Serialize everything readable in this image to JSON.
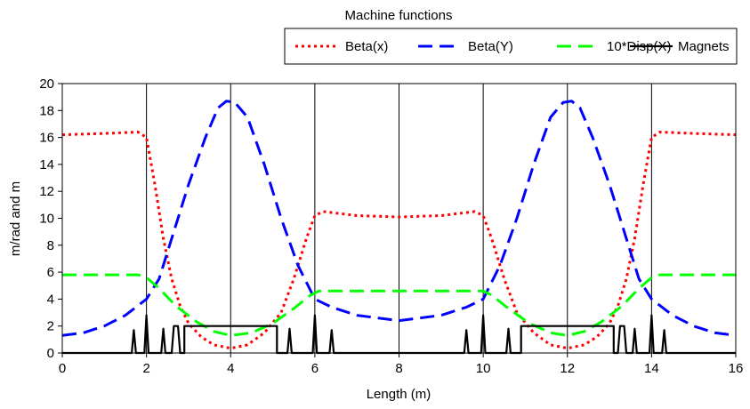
{
  "chart_data": {
    "type": "line",
    "title": "Machine functions",
    "xlabel": "Length (m)",
    "ylabel": "m/rad and m",
    "xlim": [
      0,
      16
    ],
    "ylim": [
      0,
      20
    ],
    "xticks": [
      0,
      2,
      4,
      6,
      8,
      10,
      12,
      14,
      16
    ],
    "yticks": [
      0,
      2,
      4,
      6,
      8,
      10,
      12,
      14,
      16,
      18,
      20
    ],
    "grid": "vertical",
    "legend_position": "top",
    "series": [
      {
        "name": "Beta(x)",
        "color": "#ff0000",
        "dash": "dotted",
        "points": [
          [
            0,
            16.2
          ],
          [
            1,
            16.3
          ],
          [
            1.8,
            16.4
          ],
          [
            2.0,
            16.0
          ],
          [
            2.2,
            12.5
          ],
          [
            2.4,
            8.5
          ],
          [
            2.6,
            5.5
          ],
          [
            2.8,
            3.5
          ],
          [
            3.0,
            2.2
          ],
          [
            3.3,
            1.2
          ],
          [
            3.6,
            0.6
          ],
          [
            4.0,
            0.35
          ],
          [
            4.4,
            0.6
          ],
          [
            4.8,
            1.5
          ],
          [
            5.2,
            3.0
          ],
          [
            5.5,
            5.5
          ],
          [
            5.8,
            8.5
          ],
          [
            6.0,
            10.2
          ],
          [
            6.2,
            10.5
          ],
          [
            7,
            10.2
          ],
          [
            8,
            10.1
          ],
          [
            9,
            10.2
          ],
          [
            9.8,
            10.5
          ],
          [
            10.0,
            10.2
          ],
          [
            10.2,
            8.5
          ],
          [
            10.5,
            5.5
          ],
          [
            10.8,
            3.0
          ],
          [
            11.2,
            1.5
          ],
          [
            11.6,
            0.6
          ],
          [
            12.0,
            0.35
          ],
          [
            12.4,
            0.6
          ],
          [
            12.7,
            1.2
          ],
          [
            13.0,
            2.2
          ],
          [
            13.2,
            3.5
          ],
          [
            13.4,
            5.5
          ],
          [
            13.6,
            8.5
          ],
          [
            13.8,
            12.5
          ],
          [
            14.0,
            16.0
          ],
          [
            14.2,
            16.4
          ],
          [
            15,
            16.3
          ],
          [
            16,
            16.2
          ]
        ]
      },
      {
        "name": "Beta(Y)",
        "color": "#0000ff",
        "dash": "long-dash",
        "points": [
          [
            0,
            1.3
          ],
          [
            0.5,
            1.5
          ],
          [
            1.0,
            2.0
          ],
          [
            1.5,
            2.8
          ],
          [
            2.0,
            4.0
          ],
          [
            2.3,
            5.5
          ],
          [
            2.6,
            8.5
          ],
          [
            3.0,
            12.5
          ],
          [
            3.4,
            16.0
          ],
          [
            3.7,
            18.2
          ],
          [
            3.9,
            18.7
          ],
          [
            4.1,
            18.6
          ],
          [
            4.4,
            17.5
          ],
          [
            4.8,
            14.0
          ],
          [
            5.2,
            10.0
          ],
          [
            5.6,
            6.5
          ],
          [
            6.0,
            4.0
          ],
          [
            6.4,
            3.4
          ],
          [
            7,
            2.8
          ],
          [
            8,
            2.4
          ],
          [
            9,
            2.8
          ],
          [
            9.6,
            3.4
          ],
          [
            10.0,
            4.0
          ],
          [
            10.4,
            6.5
          ],
          [
            10.8,
            10.0
          ],
          [
            11.2,
            14.0
          ],
          [
            11.6,
            17.5
          ],
          [
            11.9,
            18.6
          ],
          [
            12.1,
            18.7
          ],
          [
            12.3,
            18.2
          ],
          [
            12.6,
            16.0
          ],
          [
            13.0,
            12.5
          ],
          [
            13.4,
            8.5
          ],
          [
            13.7,
            5.5
          ],
          [
            14.0,
            4.0
          ],
          [
            14.5,
            2.8
          ],
          [
            15.0,
            2.0
          ],
          [
            15.5,
            1.5
          ],
          [
            16,
            1.3
          ]
        ]
      },
      {
        "name": "10*Disp(X)",
        "color": "#00ff00",
        "dash": "long-dash",
        "points": [
          [
            0,
            5.8
          ],
          [
            1.8,
            5.8
          ],
          [
            2.0,
            5.6
          ],
          [
            2.3,
            4.8
          ],
          [
            2.7,
            3.5
          ],
          [
            3.2,
            2.3
          ],
          [
            3.6,
            1.6
          ],
          [
            4.0,
            1.3
          ],
          [
            4.5,
            1.5
          ],
          [
            5.0,
            2.2
          ],
          [
            5.5,
            3.3
          ],
          [
            5.9,
            4.3
          ],
          [
            6.1,
            4.6
          ],
          [
            10.0,
            4.6
          ],
          [
            10.2,
            4.3
          ],
          [
            10.6,
            3.3
          ],
          [
            11.1,
            2.2
          ],
          [
            11.6,
            1.5
          ],
          [
            12.0,
            1.3
          ],
          [
            12.4,
            1.6
          ],
          [
            12.8,
            2.3
          ],
          [
            13.3,
            3.5
          ],
          [
            13.7,
            4.8
          ],
          [
            14.0,
            5.6
          ],
          [
            14.2,
            5.8
          ],
          [
            16,
            5.8
          ]
        ]
      },
      {
        "name": "Magnets",
        "color": "#000000",
        "dash": "solid",
        "points": [
          [
            0,
            0
          ],
          [
            1.65,
            0
          ],
          [
            1.7,
            1.7
          ],
          [
            1.75,
            0
          ],
          [
            1.95,
            0
          ],
          [
            2.0,
            2.8
          ],
          [
            2.05,
            0
          ],
          [
            2.35,
            0
          ],
          [
            2.4,
            1.8
          ],
          [
            2.45,
            0
          ],
          [
            2.6,
            0
          ],
          [
            2.65,
            2.0
          ],
          [
            2.75,
            2.0
          ],
          [
            2.8,
            0
          ],
          [
            2.9,
            0
          ],
          [
            2.9,
            2
          ],
          [
            5.1,
            2
          ],
          [
            5.1,
            0
          ],
          [
            5.35,
            0
          ],
          [
            5.4,
            1.8
          ],
          [
            5.45,
            0
          ],
          [
            5.95,
            0
          ],
          [
            6.0,
            2.8
          ],
          [
            6.05,
            0
          ],
          [
            6.35,
            0
          ],
          [
            6.4,
            1.7
          ],
          [
            6.45,
            0
          ],
          [
            9.55,
            0
          ],
          [
            9.6,
            1.7
          ],
          [
            9.65,
            0
          ],
          [
            9.95,
            0
          ],
          [
            10.0,
            2.8
          ],
          [
            10.05,
            0
          ],
          [
            10.55,
            0
          ],
          [
            10.6,
            1.8
          ],
          [
            10.65,
            0
          ],
          [
            10.9,
            0
          ],
          [
            10.9,
            2
          ],
          [
            13.1,
            2
          ],
          [
            13.1,
            0
          ],
          [
            13.2,
            0
          ],
          [
            13.25,
            2.0
          ],
          [
            13.35,
            2.0
          ],
          [
            13.4,
            0
          ],
          [
            13.55,
            0
          ],
          [
            13.6,
            1.8
          ],
          [
            13.65,
            0
          ],
          [
            13.95,
            0
          ],
          [
            14.0,
            2.8
          ],
          [
            14.05,
            0
          ],
          [
            14.25,
            0
          ],
          [
            14.3,
            1.7
          ],
          [
            14.35,
            0
          ],
          [
            16,
            0
          ]
        ]
      }
    ]
  }
}
